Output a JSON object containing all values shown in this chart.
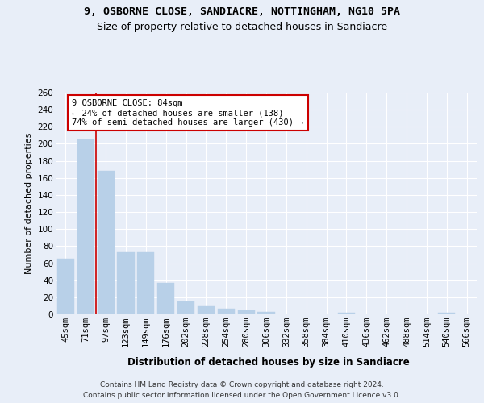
{
  "title1": "9, OSBORNE CLOSE, SANDIACRE, NOTTINGHAM, NG10 5PA",
  "title2": "Size of property relative to detached houses in Sandiacre",
  "xlabel": "Distribution of detached houses by size in Sandiacre",
  "ylabel": "Number of detached properties",
  "categories": [
    "45sqm",
    "71sqm",
    "97sqm",
    "123sqm",
    "149sqm",
    "176sqm",
    "202sqm",
    "228sqm",
    "254sqm",
    "280sqm",
    "306sqm",
    "332sqm",
    "358sqm",
    "384sqm",
    "410sqm",
    "436sqm",
    "462sqm",
    "488sqm",
    "514sqm",
    "540sqm",
    "566sqm"
  ],
  "values": [
    65,
    205,
    168,
    73,
    73,
    37,
    15,
    9,
    7,
    5,
    3,
    0,
    0,
    0,
    2,
    0,
    0,
    0,
    0,
    2,
    0
  ],
  "bar_color": "#b8d0e8",
  "bar_edge_color": "#b8d0e8",
  "vline_x": 1.5,
  "vline_color": "#cc0000",
  "annotation_text": "9 OSBORNE CLOSE: 84sqm\n← 24% of detached houses are smaller (138)\n74% of semi-detached houses are larger (430) →",
  "annotation_box_color": "#ffffff",
  "annotation_box_edgecolor": "#cc0000",
  "ylim": [
    0,
    260
  ],
  "yticks": [
    0,
    20,
    40,
    60,
    80,
    100,
    120,
    140,
    160,
    180,
    200,
    220,
    240,
    260
  ],
  "footer1": "Contains HM Land Registry data © Crown copyright and database right 2024.",
  "footer2": "Contains public sector information licensed under the Open Government Licence v3.0.",
  "bg_color": "#e8eef8",
  "plot_bg_color": "#e8eef8",
  "grid_color": "#ffffff",
  "title1_fontsize": 9.5,
  "title2_fontsize": 9,
  "ylabel_fontsize": 8,
  "xlabel_fontsize": 8.5,
  "tick_fontsize": 7.5,
  "footer_fontsize": 6.5
}
